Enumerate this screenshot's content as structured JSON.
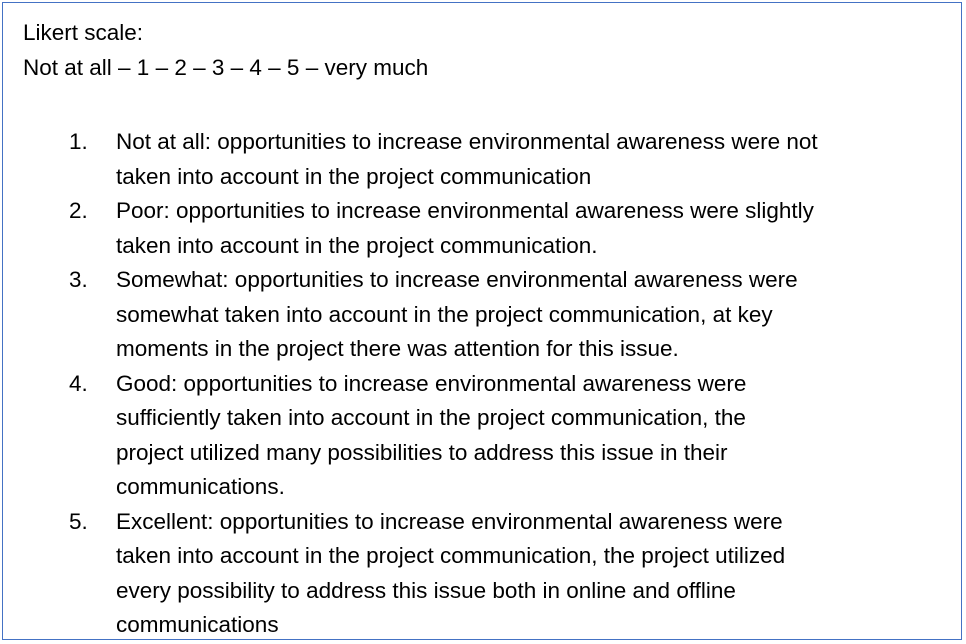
{
  "header": {
    "title": "Likert scale:",
    "scale": "Not at all – 1 – 2 – 3 – 4 – 5 – very much"
  },
  "items": [
    {
      "number": "1.",
      "lines": [
        "Not at all: opportunities to increase environmental awareness were not",
        "taken into account in the project communication"
      ]
    },
    {
      "number": "2.",
      "lines": [
        "Poor: opportunities to increase environmental awareness were slightly",
        "taken into account in the project communication."
      ]
    },
    {
      "number": "3.",
      "lines": [
        "Somewhat: opportunities to increase environmental awareness were",
        "somewhat taken into account in the project communication, at key",
        "moments in the project there was attention for this issue."
      ]
    },
    {
      "number": "4.",
      "lines": [
        "Good: opportunities to increase environmental awareness were",
        "sufficiently taken into account in the project communication, the",
        "project utilized many possibilities to address this issue in their",
        "communications."
      ]
    },
    {
      "number": "5.",
      "lines": [
        "Excellent: opportunities to increase environmental awareness were",
        "taken into account in the project communication, the project utilized",
        "every possibility to address this issue both in online and offline",
        "communications"
      ]
    }
  ],
  "colors": {
    "border": "#4472C4",
    "text": "#000000",
    "background": "#ffffff"
  }
}
